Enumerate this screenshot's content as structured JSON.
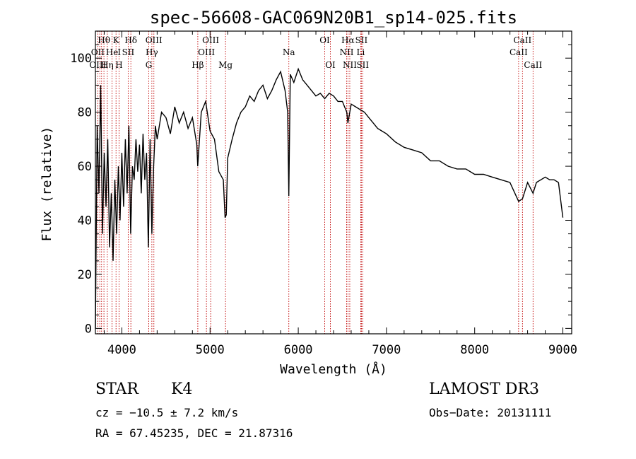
{
  "chart_data": {
    "type": "line",
    "title": "spec-56608-GAC069N20B1_sp14-025.fits",
    "xlabel": "Wavelength (Å)",
    "ylabel": "Flux (relative)",
    "xlim": [
      3700,
      9100
    ],
    "ylim": [
      -2,
      110
    ],
    "xticks": [
      4000,
      5000,
      6000,
      7000,
      8000,
      9000
    ],
    "yticks": [
      0,
      20,
      40,
      60,
      80,
      100
    ],
    "grid": false,
    "series": [
      {
        "x": [
          3700,
          3720,
          3740,
          3760,
          3780,
          3800,
          3820,
          3840,
          3860,
          3880,
          3900,
          3920,
          3940,
          3960,
          3980,
          4000,
          4020,
          4040,
          4060,
          4080,
          4100,
          4120,
          4140,
          4160,
          4180,
          4200,
          4220,
          4240,
          4260,
          4280,
          4300,
          4320,
          4340,
          4360,
          4380,
          4400,
          4450,
          4500,
          4550,
          4600,
          4650,
          4700,
          4750,
          4800,
          4850,
          4860,
          4900,
          4950,
          5000,
          5050,
          5100,
          5150,
          5170,
          5184,
          5200,
          5250,
          5300,
          5350,
          5400,
          5450,
          5500,
          5550,
          5600,
          5650,
          5700,
          5750,
          5800,
          5850,
          5880,
          5893,
          5910,
          5950,
          6000,
          6050,
          6100,
          6150,
          6200,
          6250,
          6300,
          6350,
          6400,
          6450,
          6500,
          6550,
          6563,
          6600,
          6650,
          6700,
          6750,
          6800,
          6850,
          6900,
          6950,
          7000,
          7100,
          7200,
          7300,
          7400,
          7500,
          7600,
          7700,
          7800,
          7900,
          8000,
          8100,
          8200,
          8300,
          8400,
          8498,
          8542,
          8600,
          8662,
          8700,
          8800,
          8850,
          8900,
          8950,
          9000
        ],
        "y": [
          0,
          75,
          50,
          90,
          35,
          65,
          45,
          70,
          30,
          50,
          25,
          55,
          35,
          60,
          40,
          65,
          45,
          70,
          50,
          75,
          35,
          60,
          55,
          70,
          58,
          68,
          50,
          72,
          55,
          65,
          30,
          70,
          35,
          60,
          75,
          70,
          80,
          78,
          72,
          82,
          76,
          80,
          74,
          78,
          68,
          60,
          80,
          84,
          73,
          70,
          58,
          55,
          41,
          42,
          63,
          70,
          76,
          80,
          82,
          86,
          84,
          88,
          90,
          85,
          88,
          92,
          95,
          88,
          80,
          49,
          94,
          91,
          96,
          92,
          90,
          88,
          86,
          87,
          85,
          87,
          86,
          84,
          84,
          80,
          76,
          83,
          82,
          81,
          80,
          78,
          76,
          74,
          73,
          72,
          69,
          67,
          66,
          65,
          62,
          62,
          60,
          59,
          59,
          57,
          57,
          56,
          55,
          54,
          47,
          48,
          54,
          50,
          54,
          56,
          55,
          55,
          54,
          41
        ]
      }
    ],
    "line_labels": [
      {
        "text": "Hθ",
        "row": 1,
        "wl": 3797
      },
      {
        "text": "K",
        "row": 1,
        "wl": 3934
      },
      {
        "text": "Hδ",
        "row": 1,
        "wl": 4102
      },
      {
        "text": "OIII",
        "row": 1,
        "wl": 4363
      },
      {
        "text": "OIII",
        "row": 1,
        "wl": 5007
      },
      {
        "text": "OI",
        "row": 1,
        "wl": 6300
      },
      {
        "text": "Hα",
        "row": 1,
        "wl": 6563
      },
      {
        "text": "SII",
        "row": 1,
        "wl": 6716
      },
      {
        "text": "CaII",
        "row": 1,
        "wl": 8542
      },
      {
        "text": "OII",
        "row": 2,
        "wl": 3727
      },
      {
        "text": "He",
        "row": 2,
        "wl": 3889
      },
      {
        "text": "I",
        "row": 2,
        "wl": 3970
      },
      {
        "text": "SII",
        "row": 2,
        "wl": 4072
      },
      {
        "text": "Hγ",
        "row": 2,
        "wl": 4340
      },
      {
        "text": "OIII",
        "row": 2,
        "wl": 4959
      },
      {
        "text": "Na",
        "row": 2,
        "wl": 5893
      },
      {
        "text": "NII",
        "row": 2,
        "wl": 6548
      },
      {
        "text": "Li",
        "row": 2,
        "wl": 6708
      },
      {
        "text": "CaII",
        "row": 2,
        "wl": 8498
      },
      {
        "text": "OIII",
        "row": 3,
        "wl": 3727
      },
      {
        "text": "Hη",
        "row": 3,
        "wl": 3835
      },
      {
        "text": "H",
        "row": 3,
        "wl": 3968
      },
      {
        "text": "G",
        "row": 3,
        "wl": 4305
      },
      {
        "text": "Hβ",
        "row": 3,
        "wl": 4861
      },
      {
        "text": "Mg",
        "row": 3,
        "wl": 5175
      },
      {
        "text": "OI",
        "row": 3,
        "wl": 6364
      },
      {
        "text": "NII",
        "row": 3,
        "wl": 6584
      },
      {
        "text": "SII",
        "row": 3,
        "wl": 6731
      },
      {
        "text": "CaII",
        "row": 3,
        "wl": 8662
      }
    ],
    "line_markers": [
      3727,
      3750,
      3770,
      3797,
      3835,
      3889,
      3934,
      3968,
      4072,
      4102,
      4305,
      4340,
      4363,
      4861,
      4959,
      5007,
      5175,
      5893,
      6300,
      6364,
      6548,
      6563,
      6584,
      6708,
      6716,
      6731,
      8498,
      8542,
      8662
    ]
  },
  "info": {
    "object_class": "STAR",
    "subclass": "K4",
    "survey": "LAMOST DR3",
    "cz": "cz = −10.5 ± 7.2 km/s",
    "obs_date": "Obs−Date: 20131111",
    "coords": "RA =  67.45235, DEC =  21.87316"
  },
  "colors": {
    "spectrum": "#000000",
    "markers": "#c00000",
    "axes": "#000000"
  }
}
